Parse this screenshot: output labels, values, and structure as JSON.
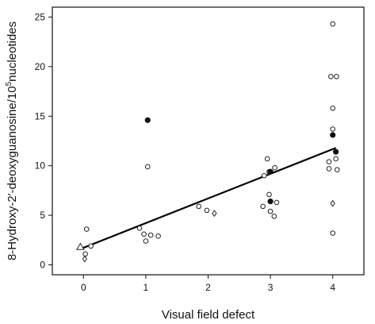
{
  "chart_data": {
    "type": "scatter",
    "xlabel": "Visual field defect",
    "ylabel_parts": [
      "8-Hydroxy-2′-deoxyguanosine/10",
      "5",
      "nucleotides"
    ],
    "xlim": [
      -0.5,
      4.5
    ],
    "ylim": [
      -1,
      26
    ],
    "x_ticks": [
      0,
      1,
      2,
      3,
      4
    ],
    "y_ticks": [
      0,
      5,
      10,
      15,
      20,
      25
    ],
    "grid": false,
    "legend": "none",
    "series": [
      {
        "marker": "open-circle",
        "points": [
          [
            0.05,
            3.6
          ],
          [
            0.12,
            1.9
          ],
          [
            0.03,
            1.1
          ],
          [
            0.9,
            3.7
          ],
          [
            0.97,
            3.1
          ],
          [
            1.0,
            2.4
          ],
          [
            1.08,
            3.0
          ],
          [
            1.2,
            2.9
          ],
          [
            1.03,
            9.9
          ],
          [
            1.85,
            5.9
          ],
          [
            1.98,
            5.5
          ],
          [
            2.95,
            10.7
          ],
          [
            3.07,
            9.8
          ],
          [
            2.98,
            9.4
          ],
          [
            2.9,
            9.0
          ],
          [
            2.98,
            7.1
          ],
          [
            2.88,
            5.9
          ],
          [
            3.0,
            5.4
          ],
          [
            3.06,
            4.9
          ],
          [
            3.1,
            6.3
          ],
          [
            4.0,
            24.3
          ],
          [
            3.97,
            19.0
          ],
          [
            4.06,
            19.0
          ],
          [
            4.0,
            15.8
          ],
          [
            4.0,
            13.7
          ],
          [
            3.94,
            10.4
          ],
          [
            3.94,
            9.7
          ],
          [
            4.07,
            9.6
          ],
          [
            4.05,
            10.7
          ],
          [
            4.0,
            3.2
          ]
        ]
      },
      {
        "marker": "filled-circle",
        "points": [
          [
            1.03,
            14.6
          ],
          [
            3.0,
            9.4
          ],
          [
            3.0,
            6.4
          ],
          [
            4.0,
            13.1
          ],
          [
            4.05,
            11.4
          ]
        ]
      },
      {
        "marker": "open-diamond",
        "points": [
          [
            0.02,
            0.6
          ],
          [
            2.1,
            5.2
          ],
          [
            4.0,
            6.2
          ]
        ]
      },
      {
        "marker": "open-triangle",
        "points": [
          [
            -0.05,
            1.8
          ]
        ]
      }
    ],
    "regression_line": {
      "x": [
        -0.05,
        4.05
      ],
      "y": [
        1.6,
        11.8
      ]
    }
  }
}
